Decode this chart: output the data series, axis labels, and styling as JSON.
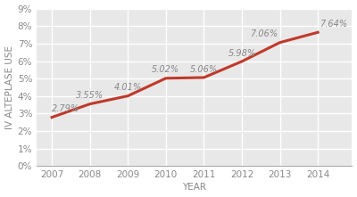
{
  "years": [
    2007,
    2008,
    2009,
    2010,
    2011,
    2012,
    2013,
    2014
  ],
  "values": [
    2.79,
    3.55,
    4.01,
    5.02,
    5.06,
    5.98,
    7.06,
    7.64
  ],
  "labels": [
    "2.79%",
    "3.55%",
    "4.01%",
    "5.02%",
    "5.06%",
    "5.98%",
    "7.06%",
    "7.64%"
  ],
  "line_color": "#c0392b",
  "line_width": 2.2,
  "xlabel": "YEAR",
  "ylabel": "IV ALTEPLASE USE",
  "ylim": [
    0,
    9
  ],
  "yticks": [
    0,
    1,
    2,
    3,
    4,
    5,
    6,
    7,
    8,
    9
  ],
  "background_color": "#ffffff",
  "plot_bg_color": "#e8e8e8",
  "grid_color": "#ffffff",
  "label_fontsize": 7.0,
  "axis_label_fontsize": 7.5,
  "tick_fontsize": 7.5,
  "label_color": "#888888"
}
